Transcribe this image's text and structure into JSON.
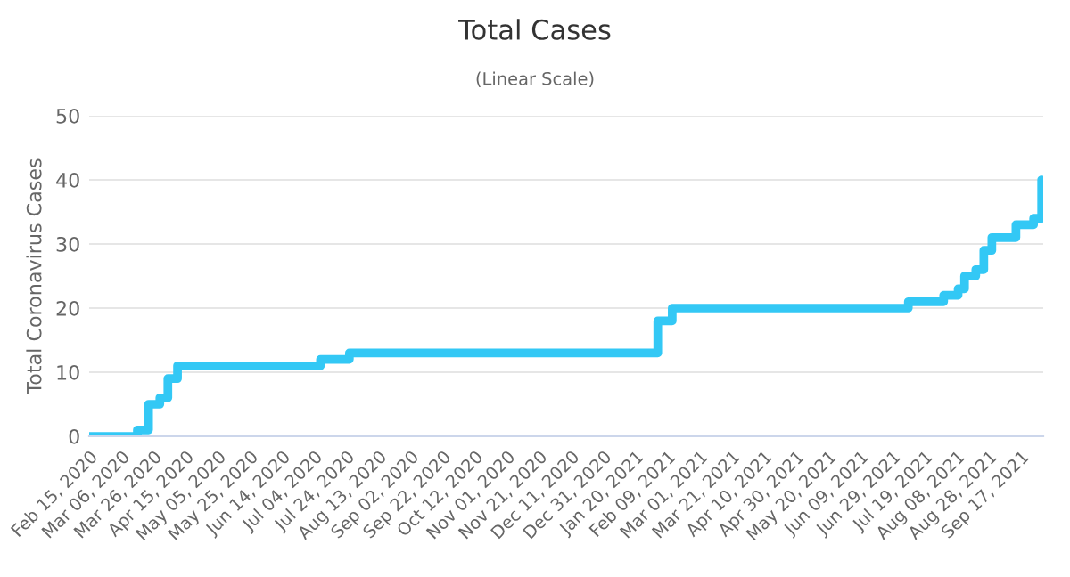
{
  "chart_data": {
    "type": "step",
    "title": "Total Cases",
    "subtitle": "(Linear Scale)",
    "ylabel": "Total Coronavirus Cases",
    "x": [
      "2020-02-15",
      "2020-03-16",
      "2020-03-23",
      "2020-03-30",
      "2020-04-04",
      "2020-04-10",
      "2020-07-08",
      "2020-07-26",
      "2021-02-03",
      "2021-02-12",
      "2021-07-09",
      "2021-07-31",
      "2021-08-09",
      "2021-08-13",
      "2021-08-20",
      "2021-08-25",
      "2021-08-30",
      "2021-09-14",
      "2021-09-25",
      "2021-09-30"
    ],
    "series": [
      {
        "color": "#33c8f5",
        "values": [
          0,
          1,
          5,
          6,
          9,
          11,
          12,
          13,
          18,
          20,
          21,
          22,
          23,
          25,
          26,
          29,
          31,
          33,
          34,
          40
        ]
      }
    ],
    "xlim": [
      "2020-02-15",
      "2021-10-01"
    ],
    "xticks": [
      {
        "value": "2020-02-15",
        "label": "Feb 15, 2020"
      },
      {
        "value": "2020-03-06",
        "label": "Mar 06, 2020"
      },
      {
        "value": "2020-03-26",
        "label": "Mar 26, 2020"
      },
      {
        "value": "2020-04-15",
        "label": "Apr 15, 2020"
      },
      {
        "value": "2020-05-05",
        "label": "May 05, 2020"
      },
      {
        "value": "2020-05-25",
        "label": "May 25, 2020"
      },
      {
        "value": "2020-06-14",
        "label": "Jun 14, 2020"
      },
      {
        "value": "2020-07-04",
        "label": "Jul 04, 2020"
      },
      {
        "value": "2020-07-24",
        "label": "Jul 24, 2020"
      },
      {
        "value": "2020-08-13",
        "label": "Aug 13, 2020"
      },
      {
        "value": "2020-09-02",
        "label": "Sep 02, 2020"
      },
      {
        "value": "2020-09-22",
        "label": "Sep 22, 2020"
      },
      {
        "value": "2020-10-12",
        "label": "Oct 12, 2020"
      },
      {
        "value": "2020-11-01",
        "label": "Nov 01, 2020"
      },
      {
        "value": "2020-11-21",
        "label": "Nov 21, 2020"
      },
      {
        "value": "2020-12-11",
        "label": "Dec 11, 2020"
      },
      {
        "value": "2020-12-31",
        "label": "Dec 31, 2020"
      },
      {
        "value": "2021-01-20",
        "label": "Jan 20, 2021"
      },
      {
        "value": "2021-02-09",
        "label": "Feb 09, 2021"
      },
      {
        "value": "2021-03-01",
        "label": "Mar 01, 2021"
      },
      {
        "value": "2021-03-21",
        "label": "Mar 21, 2021"
      },
      {
        "value": "2021-04-10",
        "label": "Apr 10, 2021"
      },
      {
        "value": "2021-04-30",
        "label": "Apr 30, 2021"
      },
      {
        "value": "2021-05-20",
        "label": "May 20, 2021"
      },
      {
        "value": "2021-06-09",
        "label": "Jun 09, 2021"
      },
      {
        "value": "2021-06-29",
        "label": "Jun 29, 2021"
      },
      {
        "value": "2021-07-19",
        "label": "Jul 19, 2021"
      },
      {
        "value": "2021-08-08",
        "label": "Aug 08, 2021"
      },
      {
        "value": "2021-08-28",
        "label": "Aug 28, 2021"
      },
      {
        "value": "2021-09-17",
        "label": "Sep 17, 2021"
      }
    ],
    "ylim": [
      0,
      50
    ],
    "yticks": [
      0,
      10,
      20,
      30,
      40,
      50
    ],
    "grid": "y",
    "legend": false
  }
}
